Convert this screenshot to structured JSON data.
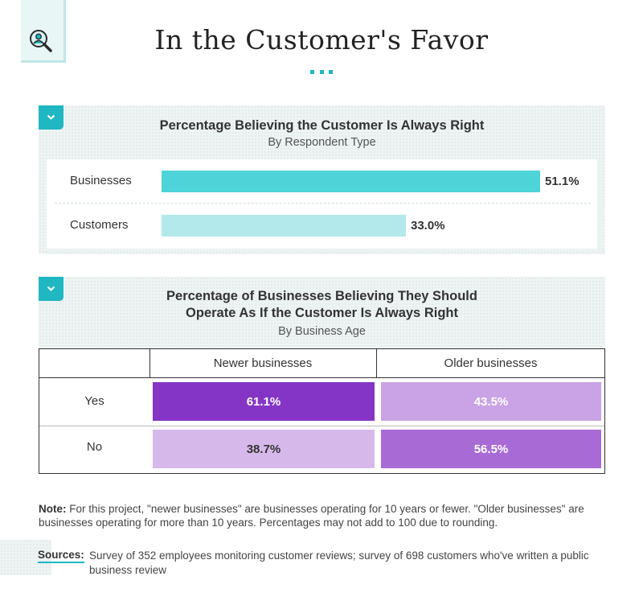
{
  "header": {
    "title": "In the Customer's Favor",
    "logo_icon": "magnifier-person-icon"
  },
  "colors": {
    "accent": "#1fb7c1",
    "business_bar": "#4dd3d8",
    "customer_bar": "#b3e9ea",
    "cell_dark": "#8435c6",
    "cell_medium": "#a86bd6",
    "cell_light": "#d6b9ea",
    "cell_lighter": "#c9a3e5"
  },
  "chart_data": [
    {
      "type": "bar",
      "orientation": "horizontal",
      "title": "Percentage Believing the Customer Is Always Right",
      "subtitle": "By Respondent Type",
      "categories": [
        "Businesses",
        "Customers"
      ],
      "values": [
        51.1,
        33.0
      ],
      "value_labels": [
        "51.1%",
        "33.0%"
      ],
      "xlim": [
        0,
        51.1
      ],
      "grid": false
    },
    {
      "type": "table",
      "title_lines": [
        "Percentage of Businesses Believing They Should",
        "Operate As If the Customer Is Always Right"
      ],
      "subtitle": "By Business Age",
      "columns": [
        "Newer businesses",
        "Older businesses"
      ],
      "rows": [
        {
          "label": "Yes",
          "values": [
            "61.1%",
            "43.5%"
          ]
        },
        {
          "label": "No",
          "values": [
            "38.7%",
            "56.5%"
          ]
        }
      ]
    }
  ],
  "footer": {
    "note_label": "Note:",
    "note_text": " For this project, \"newer businesses\" are businesses operating for 10 years or fewer. \"Older businesses\" are businesses operating for more than 10 years. Percentages may not add to 100 due to rounding.",
    "sources_label": "Sources:",
    "sources_text": "Survey of 352 employees monitoring customer reviews; survey of 698 customers who've written a public business review"
  }
}
